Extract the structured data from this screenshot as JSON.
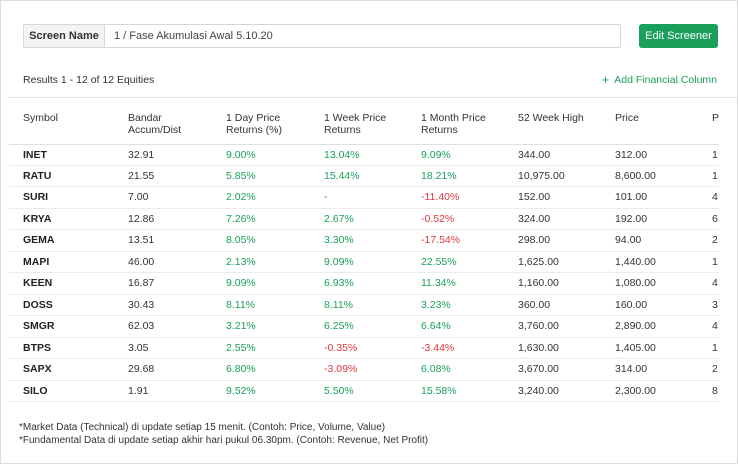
{
  "header": {
    "screen_name_label": "Screen Name",
    "screen_name_value": "1 / Fase Akumulasi Awal 5.10.20",
    "edit_button": "Edit Screener"
  },
  "toolbar": {
    "results_text": "Results 1 - 12 of 12 Equities",
    "add_column_label": "Add Financial Column"
  },
  "table": {
    "columns": [
      "Symbol",
      "Bandar Accum/Dist",
      "1 Day Price Returns (%)",
      "1 Week Price Returns",
      "1 Month Price Returns",
      "52 Week High",
      "Price",
      "P"
    ],
    "rows": [
      {
        "symbol": "INET",
        "bandar": "32.91",
        "d1": "9.00%",
        "w1": "13.04%",
        "m1": "9.09%",
        "high52": "344.00",
        "price": "312.00",
        "extra": "1"
      },
      {
        "symbol": "RATU",
        "bandar": "21.55",
        "d1": "5.85%",
        "w1": "15.44%",
        "m1": "18.21%",
        "high52": "10,975.00",
        "price": "8,600.00",
        "extra": "1"
      },
      {
        "symbol": "SURI",
        "bandar": "7.00",
        "d1": "2.02%",
        "w1": "-",
        "m1": "-11.40%",
        "high52": "152.00",
        "price": "101.00",
        "extra": "4"
      },
      {
        "symbol": "KRYA",
        "bandar": "12.86",
        "d1": "7.26%",
        "w1": "2.67%",
        "m1": "-0.52%",
        "high52": "324.00",
        "price": "192.00",
        "extra": "6"
      },
      {
        "symbol": "GEMA",
        "bandar": "13.51",
        "d1": "8.05%",
        "w1": "3.30%",
        "m1": "-17.54%",
        "high52": "298.00",
        "price": "94.00",
        "extra": "2"
      },
      {
        "symbol": "MAPI",
        "bandar": "46.00",
        "d1": "2.13%",
        "w1": "9.09%",
        "m1": "22.55%",
        "high52": "1,625.00",
        "price": "1,440.00",
        "extra": "1"
      },
      {
        "symbol": "KEEN",
        "bandar": "16.87",
        "d1": "9.09%",
        "w1": "6.93%",
        "m1": "11.34%",
        "high52": "1,160.00",
        "price": "1,080.00",
        "extra": "4"
      },
      {
        "symbol": "DOSS",
        "bandar": "30.43",
        "d1": "8.11%",
        "w1": "8.11%",
        "m1": "3.23%",
        "high52": "360.00",
        "price": "160.00",
        "extra": "3"
      },
      {
        "symbol": "SMGR",
        "bandar": "62.03",
        "d1": "3.21%",
        "w1": "6.25%",
        "m1": "6.64%",
        "high52": "3,760.00",
        "price": "2,890.00",
        "extra": "4"
      },
      {
        "symbol": "BTPS",
        "bandar": "3.05",
        "d1": "2.55%",
        "w1": "-0.35%",
        "m1": "-3.44%",
        "high52": "1,630.00",
        "price": "1,405.00",
        "extra": "1"
      },
      {
        "symbol": "SAPX",
        "bandar": "29.68",
        "d1": "6.80%",
        "w1": "-3.09%",
        "m1": "6.08%",
        "high52": "3,670.00",
        "price": "314.00",
        "extra": "2"
      },
      {
        "symbol": "SILO",
        "bandar": "1.91",
        "d1": "9.52%",
        "w1": "5.50%",
        "m1": "15.58%",
        "high52": "3,240.00",
        "price": "2,300.00",
        "extra": "8"
      }
    ]
  },
  "footnotes": {
    "line1": "*Market Data (Technical) di update setiap 15 menit. (Contoh: Price, Volume, Value)",
    "line2": "*Fundamental Data di update setiap akhir hari pukul 06.30pm. (Contoh: Revenue, Net Profit)"
  },
  "colors": {
    "accent": "#1ba05b",
    "negative": "#e0383b"
  },
  "icons": {
    "add_column": "plus-icon"
  }
}
